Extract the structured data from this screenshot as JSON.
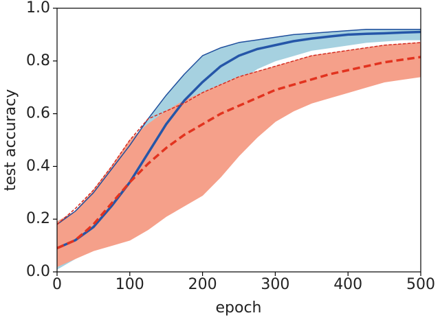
{
  "chart_data": {
    "type": "line",
    "xlabel": "epoch",
    "ylabel": "test accuracy",
    "xlim": [
      0,
      500
    ],
    "ylim": [
      0,
      1
    ],
    "xticks": [
      0,
      100,
      200,
      300,
      400,
      500
    ],
    "yticks": [
      {
        "value": 0,
        "label": "0.0"
      },
      0.2,
      0.4,
      0.6,
      0.8,
      {
        "value": 1,
        "label": "1.0"
      }
    ],
    "x": [
      0,
      25,
      50,
      75,
      100,
      125,
      150,
      175,
      200,
      225,
      250,
      275,
      300,
      325,
      350,
      375,
      400,
      425,
      450,
      475,
      500
    ],
    "bands": [
      {
        "color": "#a6d1e0",
        "lower": [
          0.01,
          0.05,
          0.09,
          0.15,
          0.22,
          0.3,
          0.38,
          0.48,
          0.58,
          0.66,
          0.72,
          0.77,
          0.8,
          0.82,
          0.84,
          0.85,
          0.86,
          0.87,
          0.875,
          0.88,
          0.88
        ],
        "upper": [
          0.18,
          0.23,
          0.3,
          0.39,
          0.48,
          0.58,
          0.67,
          0.75,
          0.82,
          0.85,
          0.87,
          0.88,
          0.89,
          0.9,
          0.905,
          0.91,
          0.915,
          0.92,
          0.92,
          0.92,
          0.92
        ]
      },
      {
        "color": "#f5a08a",
        "lower": [
          0.02,
          0.05,
          0.08,
          0.1,
          0.12,
          0.16,
          0.21,
          0.25,
          0.29,
          0.36,
          0.44,
          0.51,
          0.57,
          0.61,
          0.64,
          0.66,
          0.68,
          0.7,
          0.72,
          0.73,
          0.74
        ],
        "upper": [
          0.19,
          0.23,
          0.31,
          0.4,
          0.5,
          0.56,
          0.61,
          0.65,
          0.68,
          0.71,
          0.74,
          0.76,
          0.78,
          0.8,
          0.82,
          0.83,
          0.84,
          0.85,
          0.86,
          0.865,
          0.87
        ]
      }
    ],
    "series": [
      {
        "color": "#1f4e9c",
        "linewidth": 1.5,
        "dashed": false,
        "values": [
          0.18,
          0.23,
          0.3,
          0.39,
          0.48,
          0.58,
          0.67,
          0.75,
          0.82,
          0.85,
          0.87,
          0.88,
          0.89,
          0.9,
          0.905,
          0.91,
          0.915,
          0.92,
          0.92,
          0.92,
          0.92
        ]
      },
      {
        "color": "#2556a8",
        "linewidth": 3.5,
        "dashed": false,
        "values": [
          0.09,
          0.12,
          0.17,
          0.25,
          0.34,
          0.45,
          0.56,
          0.65,
          0.72,
          0.78,
          0.82,
          0.845,
          0.86,
          0.875,
          0.885,
          0.893,
          0.9,
          0.903,
          0.905,
          0.908,
          0.91
        ]
      },
      {
        "color": "#d42a20",
        "linewidth": 1.5,
        "dashed": true,
        "values": [
          0.18,
          0.24,
          0.31,
          0.4,
          0.5,
          0.58,
          0.61,
          0.64,
          0.68,
          0.71,
          0.74,
          0.76,
          0.78,
          0.8,
          0.82,
          0.83,
          0.84,
          0.85,
          0.86,
          0.865,
          0.87
        ]
      },
      {
        "color": "#e2331f",
        "linewidth": 3.5,
        "dashed": true,
        "values": [
          0.09,
          0.12,
          0.18,
          0.26,
          0.34,
          0.41,
          0.47,
          0.52,
          0.56,
          0.6,
          0.63,
          0.66,
          0.69,
          0.71,
          0.73,
          0.75,
          0.765,
          0.78,
          0.795,
          0.805,
          0.815
        ]
      }
    ]
  }
}
